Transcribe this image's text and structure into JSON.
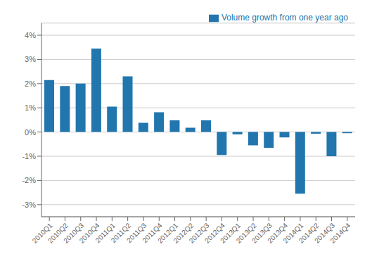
{
  "chart_data": {
    "type": "bar",
    "categories": [
      "2010Q1",
      "2010Q2",
      "2010Q3",
      "2010Q4",
      "2011Q1",
      "2011Q2",
      "2011Q3",
      "2011Q4",
      "2012Q1",
      "2012Q2",
      "2012Q3",
      "2012Q4",
      "2013Q1",
      "2013Q2",
      "2013Q3",
      "2013Q4",
      "2014Q1",
      "2014Q2",
      "2014Q3",
      "2014Q4"
    ],
    "series": [
      {
        "name": "Volume growth from one year ago",
        "color": "#2176ae",
        "values": [
          2.15,
          1.9,
          2.0,
          3.45,
          1.05,
          2.3,
          0.38,
          0.82,
          0.48,
          0.18,
          0.48,
          -0.95,
          -0.1,
          -0.55,
          -0.65,
          -0.22,
          -2.55,
          -0.07,
          -1.0,
          -0.05
        ]
      }
    ],
    "ylim": [
      -3.5,
      4.5
    ],
    "yticks": [
      {
        "value": -3,
        "label": "-3%"
      },
      {
        "value": -2,
        "label": "-2%"
      },
      {
        "value": -1,
        "label": "-1%"
      },
      {
        "value": 0,
        "label": "0%"
      },
      {
        "value": 1,
        "label": "1%"
      },
      {
        "value": 2,
        "label": "2%"
      },
      {
        "value": 3,
        "label": "3%"
      },
      {
        "value": 4,
        "label": "4%"
      }
    ],
    "grid": true,
    "legend": "upper right"
  }
}
